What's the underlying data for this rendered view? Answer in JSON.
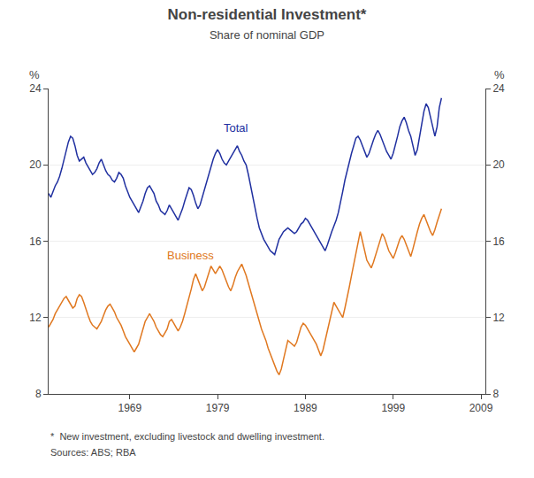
{
  "chart_data": {
    "type": "line",
    "title": "Non-residential Investment*",
    "subtitle": "Share of nominal GDP",
    "ylabel": "%",
    "y2label": "%",
    "footnote": "*  New investment, excluding livestock and dwelling investment.",
    "sources": "Sources: ABS; RBA",
    "xlim": [
      1959.75,
      2009.5
    ],
    "xticks": [
      1969,
      1979,
      1989,
      1999,
      2009
    ],
    "ylim": [
      8,
      24
    ],
    "yticks": [
      8,
      12,
      16,
      20,
      24
    ],
    "y2lim": [
      8,
      24
    ],
    "y2ticks": [
      8,
      12,
      16,
      20,
      24
    ],
    "grid": true,
    "x": [
      1959.75,
      1960,
      1960.25,
      1960.5,
      1960.75,
      1961,
      1961.25,
      1961.5,
      1961.75,
      1962,
      1962.25,
      1962.5,
      1962.75,
      1963,
      1963.25,
      1963.5,
      1963.75,
      1964,
      1964.25,
      1964.5,
      1964.75,
      1965,
      1965.25,
      1965.5,
      1965.75,
      1966,
      1966.25,
      1966.5,
      1966.75,
      1967,
      1967.25,
      1967.5,
      1967.75,
      1968,
      1968.25,
      1968.5,
      1968.75,
      1969,
      1969.25,
      1969.5,
      1969.75,
      1970,
      1970.25,
      1970.5,
      1970.75,
      1971,
      1971.25,
      1971.5,
      1971.75,
      1972,
      1972.25,
      1972.5,
      1972.75,
      1973,
      1973.25,
      1973.5,
      1973.75,
      1974,
      1974.25,
      1974.5,
      1974.75,
      1975,
      1975.25,
      1975.5,
      1975.75,
      1976,
      1976.25,
      1976.5,
      1976.75,
      1977,
      1977.25,
      1977.5,
      1977.75,
      1978,
      1978.25,
      1978.5,
      1978.75,
      1979,
      1979.25,
      1979.5,
      1979.75,
      1980,
      1980.25,
      1980.5,
      1980.75,
      1981,
      1981.25,
      1981.5,
      1981.75,
      1982,
      1982.25,
      1982.5,
      1982.75,
      1983,
      1983.25,
      1983.5,
      1983.75,
      1984,
      1984.25,
      1984.5,
      1984.75,
      1985,
      1985.25,
      1985.5,
      1985.75,
      1986,
      1986.25,
      1986.5,
      1986.75,
      1987,
      1987.25,
      1987.5,
      1987.75,
      1988,
      1988.25,
      1988.5,
      1988.75,
      1989,
      1989.25,
      1989.5,
      1989.75,
      1990,
      1990.25,
      1990.5,
      1990.75,
      1991,
      1991.25,
      1991.5,
      1991.75,
      1992,
      1992.25,
      1992.5,
      1992.75,
      1993,
      1993.25,
      1993.5,
      1993.75,
      1994,
      1994.25,
      1994.5,
      1994.75,
      1995,
      1995.25,
      1995.5,
      1995.75,
      1996,
      1996.25,
      1996.5,
      1996.75,
      1997,
      1997.25,
      1997.5,
      1997.75,
      1998,
      1998.25,
      1998.5,
      1998.75,
      1999,
      1999.25,
      1999.5,
      1999.75,
      2000,
      2000.25,
      2000.5,
      2000.75,
      2001,
      2001.25,
      2001.5,
      2001.75,
      2002,
      2002.25,
      2002.5,
      2002.75,
      2003,
      2003.25,
      2003.5,
      2003.75,
      2004,
      2004.25,
      2004.5
    ],
    "series": [
      {
        "name": "Total",
        "color": "#2030a0",
        "values": [
          18.5,
          18.3,
          18.6,
          18.9,
          19.1,
          19.4,
          19.8,
          20.3,
          20.7,
          21.2,
          21.5,
          21.4,
          21.0,
          20.5,
          20.2,
          20.3,
          20.4,
          20.1,
          19.9,
          19.7,
          19.5,
          19.6,
          19.8,
          20.1,
          20.3,
          20.0,
          19.7,
          19.5,
          19.4,
          19.2,
          19.1,
          19.3,
          19.6,
          19.5,
          19.3,
          18.9,
          18.6,
          18.3,
          18.1,
          17.9,
          17.7,
          17.5,
          17.8,
          18.1,
          18.5,
          18.8,
          18.9,
          18.7,
          18.5,
          18.1,
          17.9,
          17.6,
          17.5,
          17.4,
          17.6,
          17.9,
          17.7,
          17.5,
          17.3,
          17.1,
          17.4,
          17.7,
          18.1,
          18.5,
          18.8,
          18.7,
          18.4,
          18.0,
          17.7,
          17.9,
          18.3,
          18.7,
          19.2,
          19.6,
          19.9,
          20.3,
          20.6,
          20.8,
          20.6,
          20.3,
          20.1,
          20.0,
          20.2,
          20.4,
          20.6,
          20.8,
          21.0,
          20.7,
          20.5,
          20.2,
          20.0,
          19.5,
          18.9,
          18.3,
          17.8,
          17.2,
          16.7,
          16.4,
          16.1,
          15.9,
          15.7,
          15.5,
          15.4,
          15.3,
          15.7,
          16.1,
          16.3,
          16.5,
          16.6,
          16.7,
          16.6,
          16.5,
          16.4,
          16.5,
          16.7,
          16.9,
          17.0,
          17.2,
          17.1,
          16.9,
          16.7,
          16.5,
          16.3,
          16.1,
          15.9,
          15.7,
          15.5,
          15.8,
          16.2,
          16.5,
          16.8,
          17.1,
          17.5,
          18.0,
          18.6,
          19.2,
          19.7,
          20.2,
          20.6,
          21.0,
          21.4,
          21.5,
          21.3,
          21.0,
          20.7,
          20.4,
          20.6,
          21.0,
          21.3,
          21.6,
          21.8,
          21.6,
          21.3,
          21.0,
          20.7,
          20.5,
          20.3,
          20.6,
          21.0,
          21.5,
          22.0,
          22.3,
          22.5,
          22.2,
          21.8,
          21.5,
          21.0,
          20.5,
          20.8,
          21.5,
          22.2,
          22.8,
          23.2,
          23.0,
          22.5,
          22.0,
          21.5,
          22.0,
          23.0,
          23.5
        ]
      },
      {
        "name": "Business",
        "color": "#e07820",
        "values": [
          11.5,
          11.7,
          11.9,
          12.2,
          12.4,
          12.6,
          12.8,
          13.0,
          13.1,
          12.9,
          12.7,
          12.5,
          12.6,
          13.0,
          13.2,
          13.1,
          12.8,
          12.4,
          12.1,
          11.8,
          11.6,
          11.5,
          11.4,
          11.6,
          11.8,
          12.1,
          12.4,
          12.6,
          12.7,
          12.5,
          12.3,
          12.0,
          11.8,
          11.6,
          11.3,
          11.0,
          10.8,
          10.6,
          10.4,
          10.2,
          10.4,
          10.6,
          11.0,
          11.4,
          11.8,
          12.0,
          12.2,
          12.0,
          11.8,
          11.5,
          11.3,
          11.1,
          11.0,
          11.2,
          11.4,
          11.8,
          11.9,
          11.7,
          11.5,
          11.3,
          11.5,
          11.8,
          12.2,
          12.6,
          13.0,
          13.5,
          14.0,
          14.3,
          14.0,
          13.7,
          13.4,
          13.6,
          14.0,
          14.4,
          14.7,
          14.5,
          14.3,
          14.5,
          14.7,
          14.5,
          14.2,
          13.9,
          13.6,
          13.4,
          13.7,
          14.1,
          14.4,
          14.6,
          14.8,
          14.5,
          14.2,
          13.8,
          13.4,
          13.0,
          12.5,
          12.1,
          11.7,
          11.4,
          11.1,
          10.8,
          10.4,
          10.1,
          9.8,
          9.5,
          9.2,
          9.0,
          9.3,
          9.8,
          10.3,
          10.8,
          10.7,
          10.6,
          10.5,
          10.7,
          11.1,
          11.5,
          11.7,
          11.6,
          11.4,
          11.2,
          11.0,
          10.8,
          10.6,
          10.3,
          10.0,
          10.3,
          10.8,
          11.3,
          11.8,
          12.3,
          12.8,
          12.6,
          12.4,
          12.2,
          12.0,
          12.5,
          13.0,
          13.6,
          14.2,
          14.8,
          15.4,
          16.0,
          16.5,
          16.0,
          15.5,
          15.0,
          14.8,
          14.6,
          14.9,
          15.3,
          15.7,
          16.1,
          16.4,
          16.2,
          15.8,
          15.5,
          15.3,
          15.1,
          15.4,
          15.8,
          16.1,
          16.3,
          16.1,
          15.8,
          15.5,
          15.2,
          15.6,
          16.1,
          16.5,
          16.9,
          17.2,
          17.4,
          17.1,
          16.8,
          16.5,
          16.3,
          16.6,
          17.0,
          17.4,
          17.7
        ]
      }
    ],
    "annotations": [
      {
        "text": "Total",
        "x": 1979.5,
        "y": 21.5,
        "color": "#2030a0"
      },
      {
        "text": "Business",
        "x": 1973.0,
        "y": 14.8,
        "color": "#e07820"
      }
    ]
  }
}
